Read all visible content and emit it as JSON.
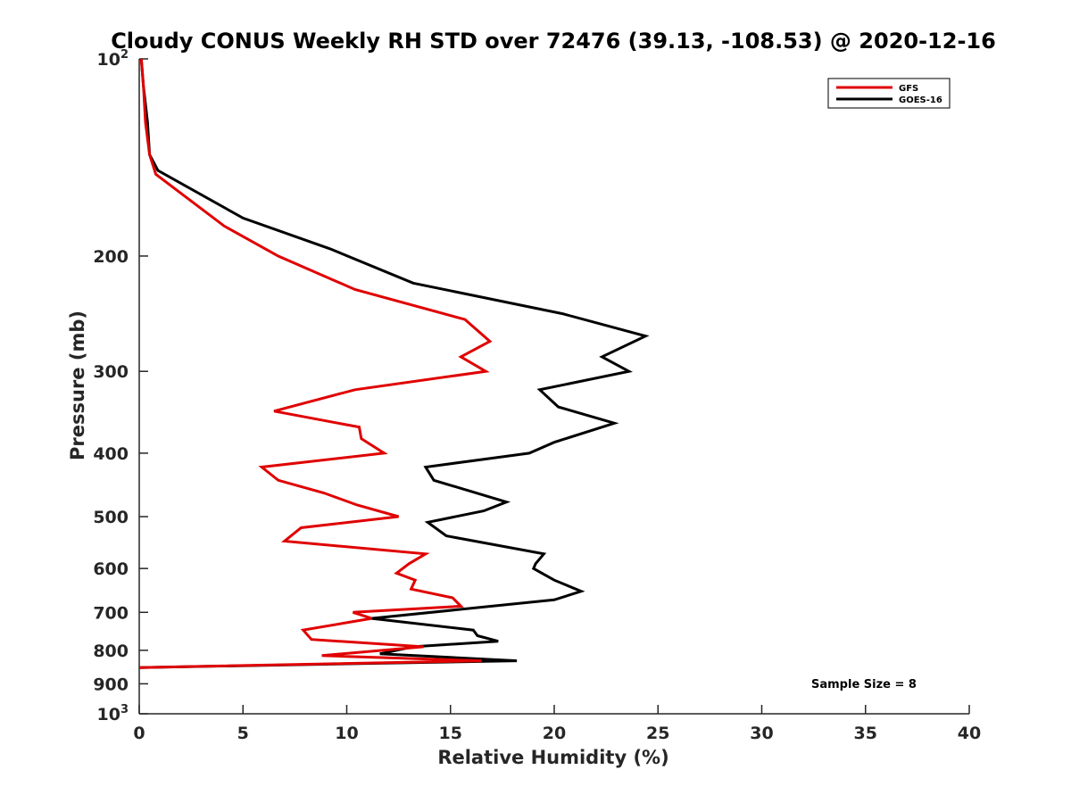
{
  "chart_data": {
    "type": "line",
    "title": "Cloudy CONUS Weekly RH STD over 72476 (39.13, -108.53) @ 2020-12-16",
    "xlabel": "Relative Humidity (%)",
    "ylabel": "Pressure (mb)",
    "xlim": [
      0,
      40
    ],
    "ylim": [
      100,
      1000
    ],
    "y_scale": "log",
    "y_reversed": true,
    "grid": false,
    "legend_position": "top-right",
    "x_ticks": [
      "0",
      "5",
      "10",
      "15",
      "20",
      "25",
      "30",
      "35",
      "40"
    ],
    "y_ticks": [
      {
        "value": 100,
        "base": "10",
        "exp": "2"
      },
      {
        "value": 200,
        "label": "200"
      },
      {
        "value": 300,
        "label": "300"
      },
      {
        "value": 400,
        "label": "400"
      },
      {
        "value": 500,
        "label": "500"
      },
      {
        "value": 600,
        "label": "600"
      },
      {
        "value": 700,
        "label": "700"
      },
      {
        "value": 800,
        "label": "800"
      },
      {
        "value": 900,
        "label": "900"
      },
      {
        "value": 1000,
        "base": "10",
        "exp": "3"
      }
    ],
    "series": [
      {
        "name": "GFS",
        "color": "#e00000",
        "points": [
          [
            0.1,
            100
          ],
          [
            0.2,
            110
          ],
          [
            0.3,
            125
          ],
          [
            0.5,
            140
          ],
          [
            0.8,
            150
          ],
          [
            4.1,
            180
          ],
          [
            6.7,
            200
          ],
          [
            10.4,
            225
          ],
          [
            15.7,
            250
          ],
          [
            16.9,
            270
          ],
          [
            15.5,
            285
          ],
          [
            16.7,
            300
          ],
          [
            10.4,
            320
          ],
          [
            6.5,
            345
          ],
          [
            10.6,
            365
          ],
          [
            10.7,
            380
          ],
          [
            11.8,
            400
          ],
          [
            5.9,
            420
          ],
          [
            6.7,
            440
          ],
          [
            8.9,
            460
          ],
          [
            10.5,
            480
          ],
          [
            12.5,
            500
          ],
          [
            7.8,
            520
          ],
          [
            7.0,
            545
          ],
          [
            13.8,
            570
          ],
          [
            13.0,
            590
          ],
          [
            12.4,
            610
          ],
          [
            13.3,
            625
          ],
          [
            13.1,
            645
          ],
          [
            15.1,
            665
          ],
          [
            15.5,
            685
          ],
          [
            10.3,
            700
          ],
          [
            11.2,
            715
          ],
          [
            7.9,
            745
          ],
          [
            8.3,
            770
          ],
          [
            13.7,
            790
          ],
          [
            8.8,
            815
          ],
          [
            16.5,
            830
          ],
          [
            0.0,
            850
          ]
        ]
      },
      {
        "name": "GOES-16",
        "color": "#000000",
        "points": [
          [
            0.1,
            100
          ],
          [
            0.2,
            110
          ],
          [
            0.4,
            125
          ],
          [
            0.5,
            140
          ],
          [
            0.9,
            148
          ],
          [
            5.0,
            175
          ],
          [
            9.2,
            195
          ],
          [
            13.2,
            220
          ],
          [
            20.4,
            245
          ],
          [
            24.4,
            265
          ],
          [
            22.3,
            285
          ],
          [
            23.6,
            300
          ],
          [
            19.3,
            320
          ],
          [
            20.2,
            340
          ],
          [
            22.9,
            360
          ],
          [
            20.0,
            385
          ],
          [
            18.8,
            400
          ],
          [
            13.8,
            420
          ],
          [
            14.2,
            440
          ],
          [
            17.7,
            475
          ],
          [
            16.6,
            490
          ],
          [
            13.9,
            510
          ],
          [
            14.8,
            535
          ],
          [
            19.5,
            570
          ],
          [
            19.1,
            590
          ],
          [
            19.0,
            600
          ],
          [
            20.0,
            625
          ],
          [
            21.3,
            650
          ],
          [
            20.0,
            670
          ],
          [
            11.2,
            715
          ],
          [
            16.1,
            745
          ],
          [
            16.3,
            760
          ],
          [
            17.3,
            775
          ],
          [
            13.2,
            790
          ],
          [
            11.6,
            810
          ],
          [
            18.2,
            830
          ],
          [
            0.0,
            850
          ]
        ]
      }
    ],
    "annotations": [
      "Sample Size = 8"
    ]
  }
}
